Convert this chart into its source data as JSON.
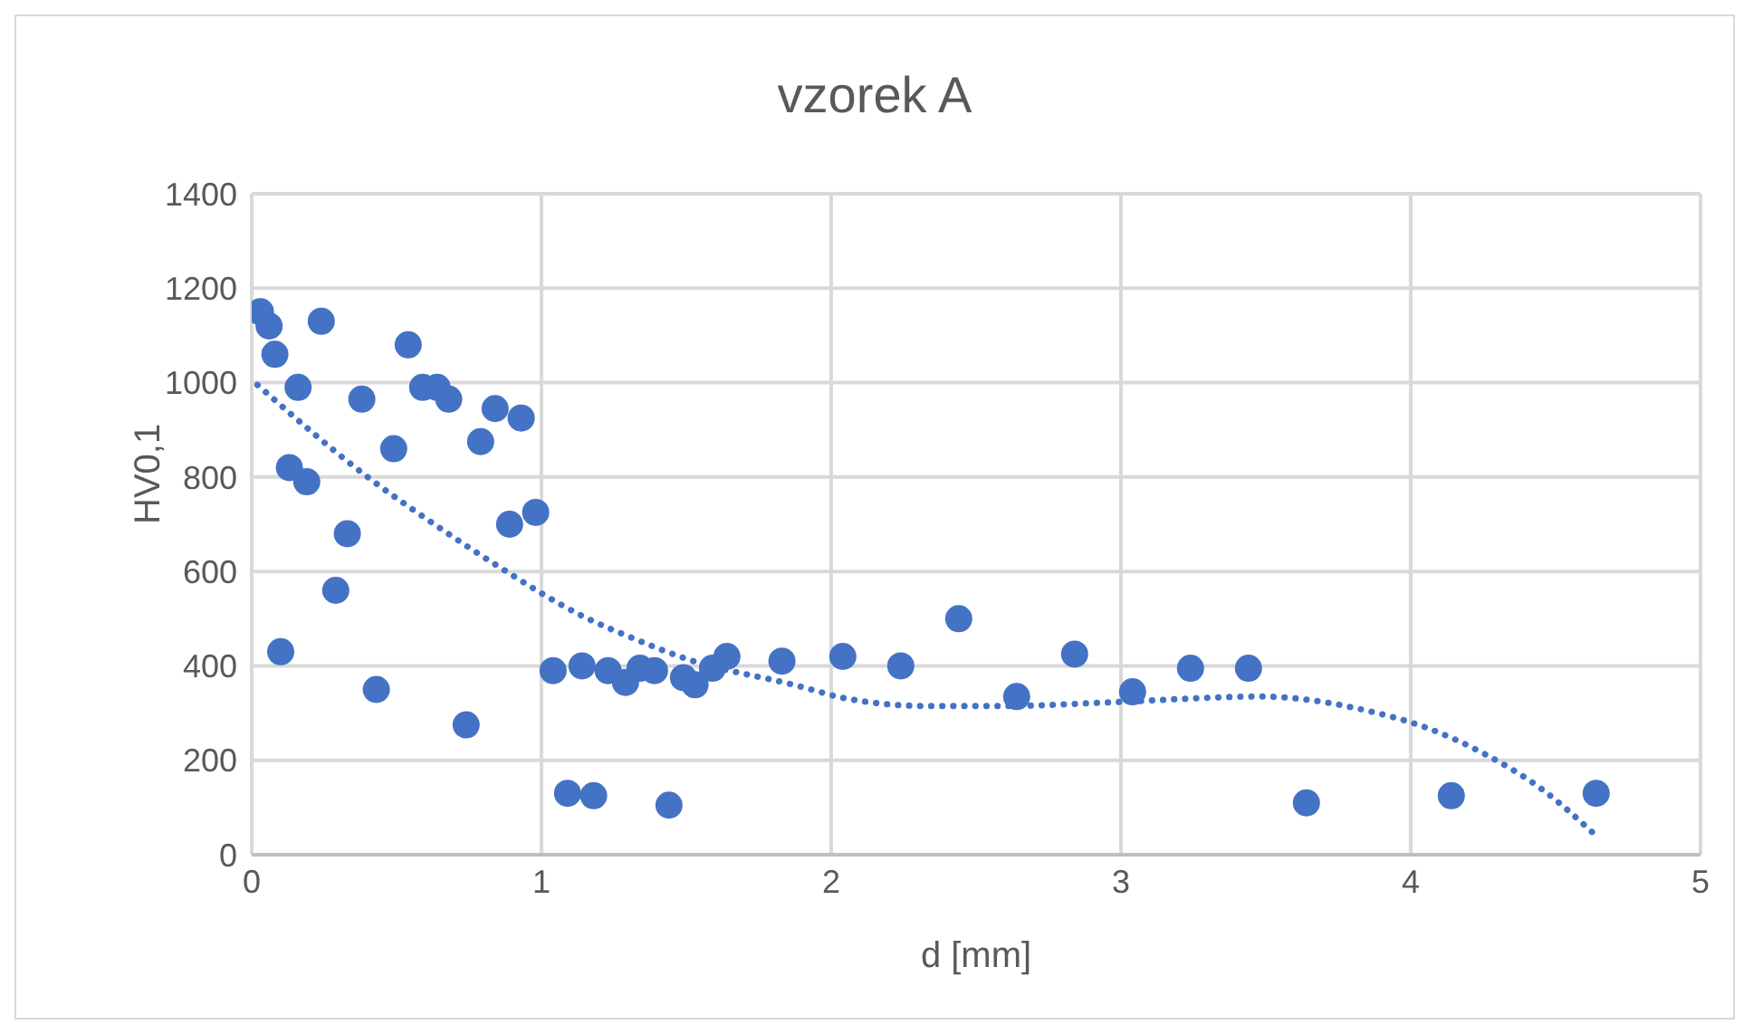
{
  "chart_data": {
    "type": "scatter",
    "title": "vzorek A",
    "xlabel": "d [mm]",
    "ylabel": "HV0,1",
    "xlim": [
      0,
      5
    ],
    "xticks": [
      0,
      1,
      2,
      3,
      4,
      5
    ],
    "ylim": [
      0,
      1400
    ],
    "yticks": [
      0,
      200,
      400,
      600,
      800,
      1000,
      1200,
      1400
    ],
    "grid": true,
    "marker": "circle",
    "series": [
      {
        "color": "#4472c4",
        "x": [
          0.03,
          0.06,
          0.08,
          0.1,
          0.13,
          0.16,
          0.19,
          0.24,
          0.29,
          0.33,
          0.38,
          0.43,
          0.49,
          0.54,
          0.59,
          0.64,
          0.68,
          0.74,
          0.79,
          0.84,
          0.89,
          0.93,
          0.98,
          1.04,
          1.09,
          1.14,
          1.18,
          1.23,
          1.29,
          1.34,
          1.39,
          1.44,
          1.49,
          1.53,
          1.59,
          1.64,
          1.83,
          2.04,
          2.24,
          2.44,
          2.64,
          2.84,
          3.04,
          3.24,
          3.44,
          3.64,
          4.14,
          4.64
        ],
        "values": [
          1150,
          1120,
          1060,
          430,
          820,
          990,
          790,
          1130,
          560,
          680,
          965,
          350,
          860,
          1080,
          990,
          990,
          965,
          275,
          875,
          945,
          700,
          925,
          725,
          390,
          130,
          400,
          125,
          390,
          365,
          395,
          390,
          105,
          375,
          360,
          395,
          420,
          410,
          420,
          400,
          500,
          335,
          425,
          345,
          395,
          395,
          110,
          125,
          130
        ]
      },
      {
        "type": "line",
        "color": "#4472c4",
        "line_style": "dotted",
        "marker": "none",
        "x": [
          0.02,
          0.4,
          0.63,
          0.84,
          1.16,
          1.31,
          1.5,
          1.87,
          2.06,
          2.33,
          2.6,
          2.97,
          3.48,
          3.85,
          4.05,
          4.25,
          4.45,
          4.64
        ],
        "values": [
          995,
          800,
          700,
          615,
          500,
          460,
          415,
          360,
          330,
          315,
          315,
          323,
          335,
          305,
          270,
          215,
          140,
          40
        ]
      }
    ]
  }
}
